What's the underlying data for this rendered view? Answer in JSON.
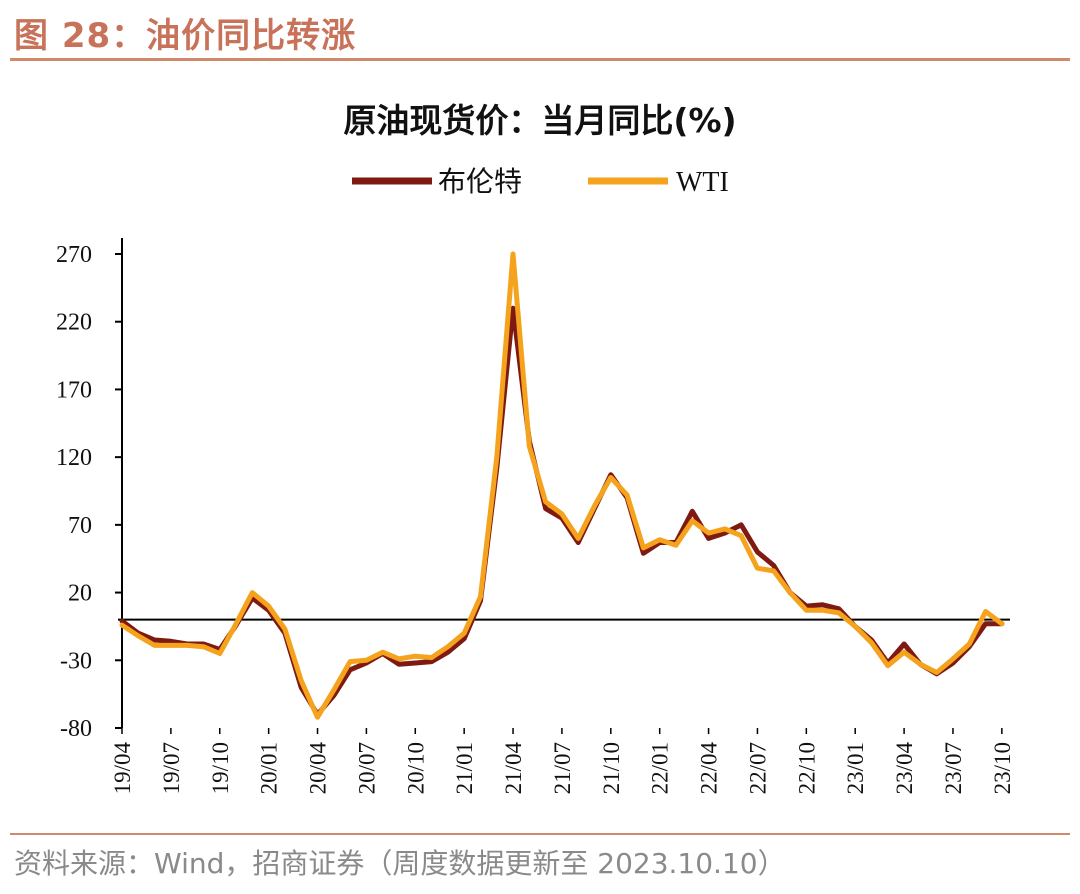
{
  "figure": {
    "title": "图 28：油价同比转涨",
    "source": "资料来源：Wind，招商证券（周度数据更新至 2023.10.10）"
  },
  "colors": {
    "brent": "#7e1a12",
    "wti": "#f5a21c",
    "accent": "#c8725a"
  },
  "chart_data": {
    "type": "line",
    "title": "原油现货价：当月同比(%)",
    "xlabel": "",
    "ylabel": "",
    "ylim": [
      -80,
      270
    ],
    "yticks": [
      -80,
      -30,
      20,
      70,
      120,
      170,
      220,
      270
    ],
    "xticks": [
      "19/04",
      "19/07",
      "19/10",
      "20/01",
      "20/04",
      "20/07",
      "20/10",
      "21/01",
      "21/04",
      "21/07",
      "21/10",
      "22/01",
      "22/04",
      "22/07",
      "22/10",
      "23/01",
      "23/04",
      "23/07",
      "23/10"
    ],
    "legend_position": "top-center",
    "x": [
      "19/04",
      "19/05",
      "19/06",
      "19/07",
      "19/08",
      "19/09",
      "19/10",
      "19/11",
      "19/12",
      "20/01",
      "20/02",
      "20/03",
      "20/04",
      "20/05",
      "20/06",
      "20/07",
      "20/08",
      "20/09",
      "20/10",
      "20/11",
      "20/12",
      "21/01",
      "21/02",
      "21/03",
      "21/04",
      "21/05",
      "21/06",
      "21/07",
      "21/08",
      "21/09",
      "21/10",
      "21/11",
      "21/12",
      "22/01",
      "22/02",
      "22/03",
      "22/04",
      "22/05",
      "22/06",
      "22/07",
      "22/08",
      "22/09",
      "22/10",
      "22/11",
      "22/12",
      "23/01",
      "23/02",
      "23/03",
      "23/04",
      "23/05",
      "23/06",
      "23/07",
      "23/08",
      "23/09",
      "23/10"
    ],
    "series": [
      {
        "name": "布伦特",
        "values": [
          -1,
          -10,
          -15,
          -16,
          -18,
          -18,
          -22,
          -4,
          16,
          7,
          -10,
          -50,
          -70,
          -56,
          -37,
          -32,
          -25,
          -33,
          -32,
          -31,
          -24,
          -14,
          14,
          112,
          230,
          132,
          82,
          75,
          57,
          82,
          107,
          90,
          49,
          57,
          57,
          80,
          60,
          64,
          70,
          50,
          40,
          20,
          10,
          11,
          8,
          -5,
          -15,
          -32,
          -18,
          -33,
          -40,
          -32,
          -20,
          -3,
          -3
        ]
      },
      {
        "name": "WTI",
        "values": [
          -4,
          -12,
          -19,
          -19,
          -19,
          -20,
          -25,
          -3,
          20,
          10,
          -7,
          -45,
          -72,
          -52,
          -31,
          -30,
          -24,
          -29,
          -27,
          -28,
          -20,
          -10,
          17,
          120,
          270,
          128,
          87,
          78,
          60,
          84,
          105,
          92,
          53,
          59,
          55,
          73,
          64,
          67,
          62,
          38,
          36,
          20,
          7,
          7,
          5,
          -5,
          -17,
          -34,
          -24,
          -33,
          -39,
          -29,
          -18,
          6,
          -3
        ]
      }
    ]
  }
}
